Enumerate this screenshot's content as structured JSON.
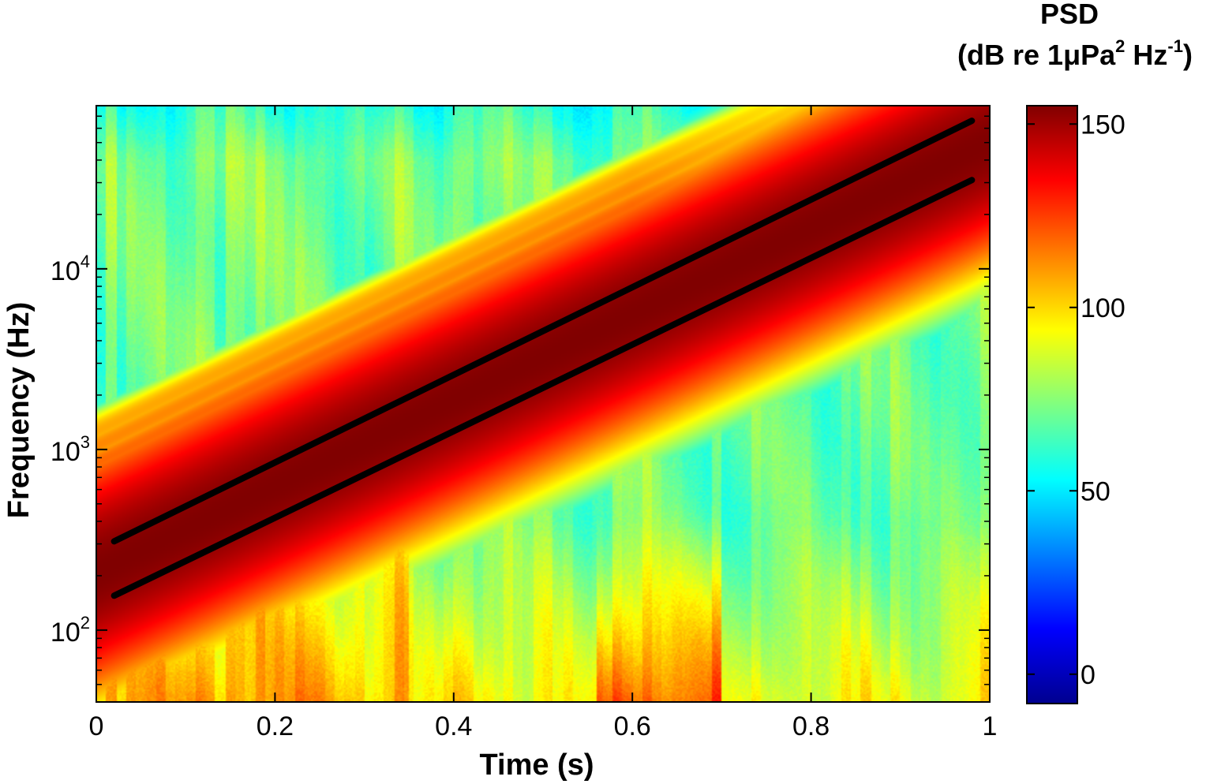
{
  "chart_data": {
    "type": "heatmap",
    "subtype": "spectrogram",
    "xlabel": "Time (s)",
    "ylabel": "Frequency (Hz)",
    "x_ticks": [
      "0",
      "0.2",
      "0.4",
      "0.6",
      "0.8",
      "1"
    ],
    "x_tick_values": [
      0,
      0.2,
      0.4,
      0.6,
      0.8,
      1.0
    ],
    "xlim": [
      0,
      1.0
    ],
    "y_scale": "log",
    "ylim": [
      40,
      80000
    ],
    "y_ticks": [
      {
        "base": "10",
        "exp": "2",
        "value": 100
      },
      {
        "base": "10",
        "exp": "3",
        "value": 1000
      },
      {
        "base": "10",
        "exp": "4",
        "value": 10000
      }
    ],
    "colormap": "jet",
    "colorbar": {
      "title_line1": "PSD",
      "title_line2_parts": [
        "(dB re 1μPa",
        "2",
        " Hz",
        "-1",
        ")"
      ],
      "ticks": [
        "150",
        "100",
        "50",
        "0"
      ],
      "tick_values": [
        150,
        100,
        50,
        0
      ],
      "range": [
        -8,
        155
      ]
    },
    "colormap_stops": [
      "#00008f",
      "#0000ff",
      "#0080ff",
      "#00ffff",
      "#80ff80",
      "#ffff00",
      "#ff8000",
      "#ff0000",
      "#800000"
    ],
    "chirp": {
      "fundamental_start": {
        "t": 0.01,
        "f": 220
      },
      "fundamental_end": {
        "t": 0.98,
        "f": 45000
      },
      "harmonics": [
        2,
        3,
        4,
        5,
        6
      ]
    },
    "series": [
      {
        "type": "line",
        "color": "#000000",
        "points": [
          {
            "t": 0.02,
            "f": 310
          },
          {
            "t": 0.98,
            "f": 66000
          }
        ]
      },
      {
        "type": "line",
        "color": "#000000",
        "points": [
          {
            "t": 0.02,
            "f": 155
          },
          {
            "t": 0.98,
            "f": 31000
          }
        ]
      }
    ],
    "grid": false
  }
}
